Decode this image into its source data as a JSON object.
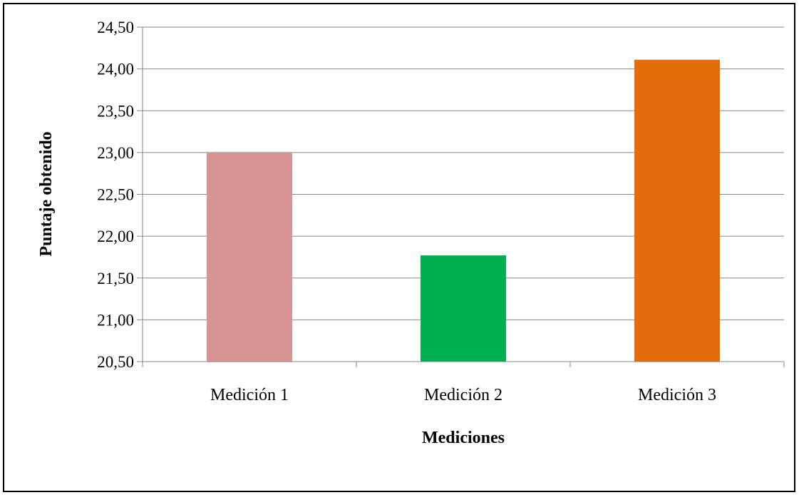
{
  "chart_data": {
    "type": "bar",
    "categories": [
      "Medición 1",
      "Medición 2",
      "Medición 3"
    ],
    "values": [
      23.0,
      21.77,
      24.11
    ],
    "colors": [
      "#d99594",
      "#00b050",
      "#e46c0a"
    ],
    "xlabel": "Mediciones",
    "ylabel": "Puntaje obtenido",
    "ylim": [
      20.5,
      24.5
    ],
    "yticks": [
      "20,50",
      "21,00",
      "21,50",
      "22,00",
      "22,50",
      "23,00",
      "23,50",
      "24,00",
      "24,50"
    ],
    "grid": true,
    "legend": "none"
  }
}
